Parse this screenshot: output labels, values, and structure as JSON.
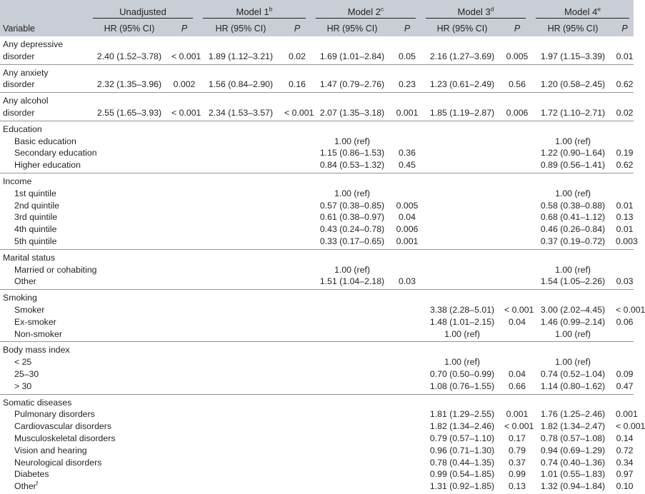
{
  "header": {
    "groups": [
      {
        "label": "Unadjusted",
        "sup": ""
      },
      {
        "label": "Model 1",
        "sup": "b"
      },
      {
        "label": "Model 2",
        "sup": "c"
      },
      {
        "label": "Model 3",
        "sup": "d"
      },
      {
        "label": "Model 4",
        "sup": "e"
      }
    ],
    "variable_label": "Variable",
    "hr_label": "HR (95% CI)",
    "p_label": "P"
  },
  "sections": [
    {
      "rows": [
        {
          "label": "Any depressive",
          "indent": false,
          "cells": [
            "",
            "",
            "",
            "",
            "",
            "",
            "",
            "",
            "",
            ""
          ]
        },
        {
          "label": "disorder",
          "indent": false,
          "cells": [
            "2.40 (1.52–3.78)",
            "< 0.001",
            "1.89 (1.12–3.21)",
            "0.02",
            "1.69 (1.01–2.84)",
            "0.05",
            "2.16 (1.27–3.69)",
            "0.005",
            "1.97 (1.15–3.39)",
            "0.01"
          ]
        }
      ]
    },
    {
      "rows": [
        {
          "label": "Any anxiety",
          "indent": false,
          "cells": [
            "",
            "",
            "",
            "",
            "",
            "",
            "",
            "",
            "",
            ""
          ]
        },
        {
          "label": "disorder",
          "indent": false,
          "cells": [
            "2.32 (1.35–3.96)",
            "0.002",
            "1.56 (0.84–2.90)",
            "0.16",
            "1.47 (0.79–2.76)",
            "0.23",
            "1.23 (0.61–2.49)",
            "0.56",
            "1.20 (0.58–2.45)",
            "0.62"
          ]
        }
      ]
    },
    {
      "rows": [
        {
          "label": "Any alcohol",
          "indent": false,
          "cells": [
            "",
            "",
            "",
            "",
            "",
            "",
            "",
            "",
            "",
            ""
          ]
        },
        {
          "label": "disorder",
          "indent": false,
          "cells": [
            "2.55 (1.65–3.93)",
            "< 0.001",
            "2.34 (1.53–3.57)",
            "< 0.001",
            "2.07 (1.35–3.18)",
            "0.001",
            "1.85 (1.19–2.87)",
            "0.006",
            "1.72 (1.10–2.71)",
            "0.02"
          ]
        }
      ]
    },
    {
      "rows": [
        {
          "label": "Education",
          "indent": false,
          "cells": [
            "",
            "",
            "",
            "",
            "",
            "",
            "",
            "",
            "",
            ""
          ]
        },
        {
          "label": "Basic education",
          "indent": true,
          "cells": [
            "",
            "",
            "",
            "",
            "1.00 (ref)",
            "",
            "",
            "",
            "1.00 (ref)",
            ""
          ]
        },
        {
          "label": "Secondary education",
          "indent": true,
          "cells": [
            "",
            "",
            "",
            "",
            "1.15 (0.86–1.53)",
            "0.36",
            "",
            "",
            "1.22 (0.90–1.64)",
            "0.19"
          ]
        },
        {
          "label": "Higher education",
          "indent": true,
          "cells": [
            "",
            "",
            "",
            "",
            "0.84 (0.53–1.32)",
            "0.45",
            "",
            "",
            "0.89 (0.56–1.41)",
            "0.62"
          ]
        }
      ]
    },
    {
      "rows": [
        {
          "label": "Income",
          "indent": false,
          "cells": [
            "",
            "",
            "",
            "",
            "",
            "",
            "",
            "",
            "",
            ""
          ]
        },
        {
          "label": "1st quintile",
          "indent": true,
          "cells": [
            "",
            "",
            "",
            "",
            "1.00 (ref)",
            "",
            "",
            "",
            "1.00 (ref)",
            ""
          ]
        },
        {
          "label": "2nd quintile",
          "indent": true,
          "cells": [
            "",
            "",
            "",
            "",
            "0.57 (0.38–0.85)",
            "0.005",
            "",
            "",
            "0.58 (0.38–0.88)",
            "0.01"
          ]
        },
        {
          "label": "3rd quintile",
          "indent": true,
          "cells": [
            "",
            "",
            "",
            "",
            "0.61 (0.38–0.97)",
            "0.04",
            "",
            "",
            "0.68 (0.41–1.12)",
            "0.13"
          ]
        },
        {
          "label": "4th quintile",
          "indent": true,
          "cells": [
            "",
            "",
            "",
            "",
            "0.43 (0.24–0.78)",
            "0.006",
            "",
            "",
            "0.46 (0.26–0.84)",
            "0.01"
          ]
        },
        {
          "label": "5th quintile",
          "indent": true,
          "cells": [
            "",
            "",
            "",
            "",
            "0.33 (0.17–0.65)",
            "0.001",
            "",
            "",
            "0.37 (0.19–0.72)",
            "0.003"
          ]
        }
      ]
    },
    {
      "rows": [
        {
          "label": "Marital status",
          "indent": false,
          "cells": [
            "",
            "",
            "",
            "",
            "",
            "",
            "",
            "",
            "",
            ""
          ]
        },
        {
          "label": "Married or cohabiting",
          "indent": true,
          "cells": [
            "",
            "",
            "",
            "",
            "1.00 (ref)",
            "",
            "",
            "",
            "1.00 (ref)",
            ""
          ]
        },
        {
          "label": "Other",
          "indent": true,
          "cells": [
            "",
            "",
            "",
            "",
            "1.51 (1.04–2.18)",
            "0.03",
            "",
            "",
            "1.54 (1.05–2.26)",
            "0.03"
          ]
        }
      ]
    },
    {
      "rows": [
        {
          "label": "Smoking",
          "indent": false,
          "cells": [
            "",
            "",
            "",
            "",
            "",
            "",
            "",
            "",
            "",
            ""
          ]
        },
        {
          "label": "Smoker",
          "indent": true,
          "cells": [
            "",
            "",
            "",
            "",
            "",
            "",
            "3.38 (2.28–5.01)",
            "< 0.001",
            "3.00 (2.02–4.45)",
            "< 0.001"
          ]
        },
        {
          "label": "Ex-smoker",
          "indent": true,
          "cells": [
            "",
            "",
            "",
            "",
            "",
            "",
            "1.48 (1.01–2.15)",
            "0.04",
            "1.46 (0.99–2.14)",
            "0.06"
          ]
        },
        {
          "label": "Non-smoker",
          "indent": true,
          "cells": [
            "",
            "",
            "",
            "",
            "",
            "",
            "1.00 (ref)",
            "",
            "1.00 (ref)",
            ""
          ]
        }
      ]
    },
    {
      "rows": [
        {
          "label": "Body mass index",
          "indent": false,
          "cells": [
            "",
            "",
            "",
            "",
            "",
            "",
            "",
            "",
            "",
            ""
          ]
        },
        {
          "label": "< 25",
          "indent": true,
          "cells": [
            "",
            "",
            "",
            "",
            "",
            "",
            "1.00 (ref)",
            "",
            "1.00 (ref)",
            ""
          ]
        },
        {
          "label": "25–30",
          "indent": true,
          "cells": [
            "",
            "",
            "",
            "",
            "",
            "",
            "0.70 (0.50–0.99)",
            "0.04",
            "0.74 (0.52–1.04)",
            "0.09"
          ]
        },
        {
          "label": "> 30",
          "indent": true,
          "cells": [
            "",
            "",
            "",
            "",
            "",
            "",
            "1.08 (0.76–1.55)",
            "0.66",
            "1.14 (0.80–1.62)",
            "0.47"
          ]
        }
      ]
    },
    {
      "rows": [
        {
          "label": "Somatic diseases",
          "indent": false,
          "cells": [
            "",
            "",
            "",
            "",
            "",
            "",
            "",
            "",
            "",
            ""
          ]
        },
        {
          "label": "Pulmonary disorders",
          "indent": true,
          "cells": [
            "",
            "",
            "",
            "",
            "",
            "",
            "1.81 (1.29–2.55)",
            "0.001",
            "1.76 (1.25–2.46)",
            "0.001"
          ]
        },
        {
          "label": "Cardiovascular disorders",
          "indent": true,
          "cells": [
            "",
            "",
            "",
            "",
            "",
            "",
            "1.82 (1.34–2.46)",
            "< 0.001",
            "1.82 (1.34–2.47)",
            "< 0.001"
          ]
        },
        {
          "label": "Musculoskeletal disorders",
          "indent": true,
          "cells": [
            "",
            "",
            "",
            "",
            "",
            "",
            "0.79 (0.57–1.10)",
            "0.17",
            "0.78 (0.57–1.08)",
            "0.14"
          ]
        },
        {
          "label": "Vision and hearing",
          "indent": true,
          "cells": [
            "",
            "",
            "",
            "",
            "",
            "",
            "0.96 (0.71–1.30)",
            "0.79",
            "0.94 (0.69–1.29)",
            "0.72"
          ]
        },
        {
          "label": "Neurological disorders",
          "indent": true,
          "cells": [
            "",
            "",
            "",
            "",
            "",
            "",
            "0.78 (0.44–1.35)",
            "0.37",
            "0.74 (0.40–1.36)",
            "0.34"
          ]
        },
        {
          "label": "Diabetes",
          "indent": true,
          "cells": [
            "",
            "",
            "",
            "",
            "",
            "",
            "0.99 (0.54–1.85)",
            "0.99",
            "1.01 (0.55–1.83)",
            "0.97"
          ]
        },
        {
          "label": "Other",
          "label_sup": "f",
          "indent": true,
          "cells": [
            "",
            "",
            "",
            "",
            "",
            "",
            "1.31 (0.92–1.85)",
            "0.13",
            "1.32 (0.94–1.84)",
            "0.10"
          ]
        }
      ]
    }
  ]
}
